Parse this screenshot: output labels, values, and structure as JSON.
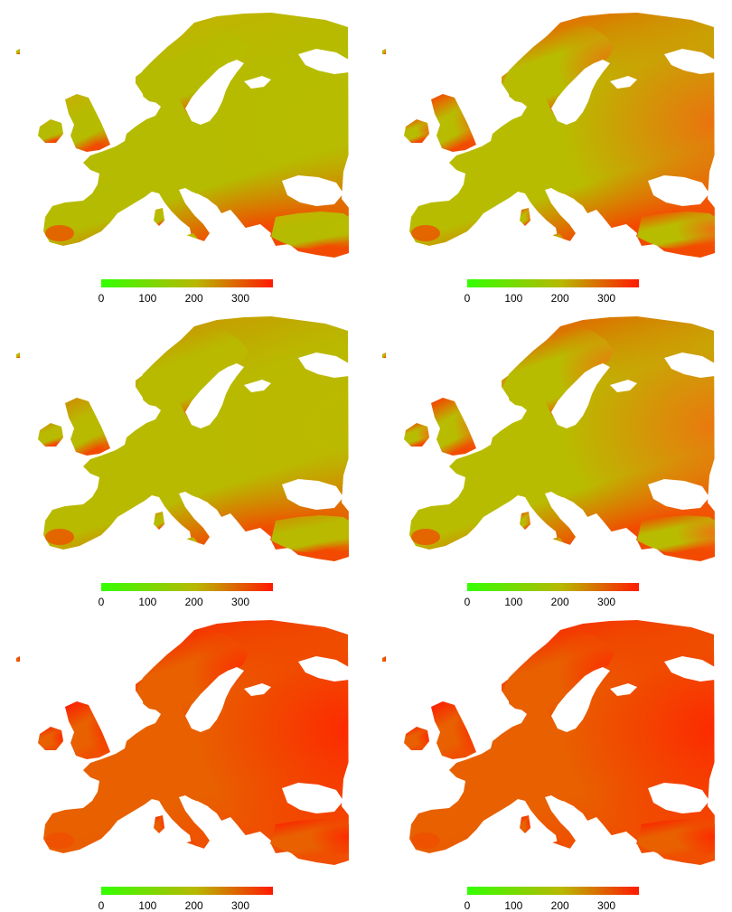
{
  "colors": {
    "scale_low": "#33ff00",
    "scale_mid": "#b8b800",
    "scale_high": "#ff1a00",
    "background": "#ffffff"
  },
  "panels": [
    {
      "id": "row1-left",
      "overall_color": "#b5bb00",
      "south_color": "#f24a00",
      "north_color": "#c8b000",
      "east_color": "#b8bc00"
    },
    {
      "id": "row1-right",
      "overall_color": "#b8bc00",
      "south_color": "#f24a00",
      "north_color": "#ff3a00",
      "east_color": "#f06a10"
    },
    {
      "id": "row2-left",
      "overall_color": "#b8ba00",
      "south_color": "#f24a00",
      "north_color": "#d08a00",
      "east_color": "#bcb800"
    },
    {
      "id": "row2-right",
      "overall_color": "#b8bc00",
      "south_color": "#f24a00",
      "north_color": "#ff3000",
      "east_color": "#f07010"
    },
    {
      "id": "row3-left",
      "overall_color": "#e86000",
      "south_color": "#f04e00",
      "north_color": "#ff1500",
      "east_color": "#ff2400"
    },
    {
      "id": "row3-right",
      "overall_color": "#e86000",
      "south_color": "#f04e00",
      "north_color": "#ff1500",
      "east_color": "#ff2400"
    }
  ],
  "colorbar": {
    "ticks": [
      "0",
      "100",
      "200",
      "300"
    ],
    "tick_values": [
      0,
      100,
      200,
      300
    ],
    "min": 0,
    "max": 370
  }
}
